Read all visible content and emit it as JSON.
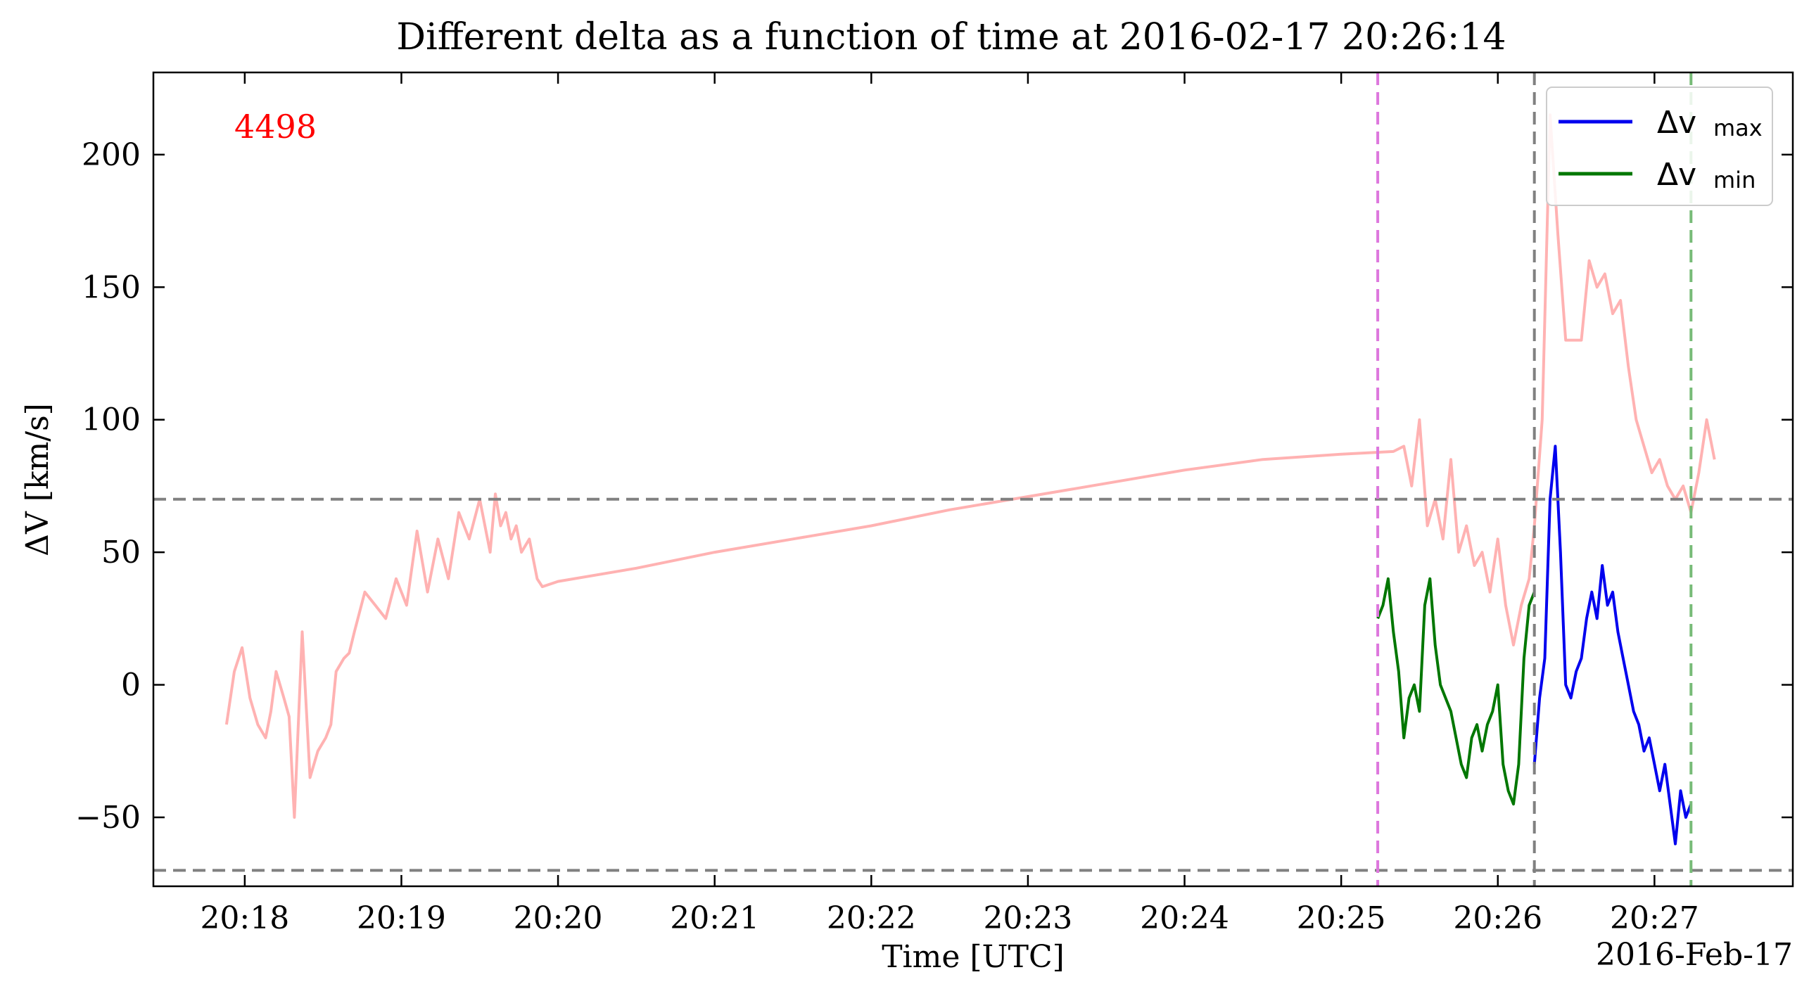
{
  "chart_data": {
    "type": "line",
    "title": "Different delta as a function of time at 2016-02-17 20:26:14",
    "xlabel": "Time [UTC]",
    "ylabel": "ΔV [km/s]",
    "x_offset_label": "2016-Feb-17",
    "annotation": "4498",
    "xlim": [
      "20:17:25",
      "20:27:53"
    ],
    "ylim": [
      -76,
      231
    ],
    "xticks": [
      "20:18",
      "20:19",
      "20:20",
      "20:21",
      "20:22",
      "20:23",
      "20:24",
      "20:25",
      "20:26",
      "20:27"
    ],
    "yticks": [
      -50,
      0,
      50,
      100,
      150,
      200
    ],
    "grid": false,
    "legend_position": "top-right",
    "colors": {
      "background": "#ffffff",
      "delta_v": "#ffb2b2",
      "delta_v_max": "#0000ee",
      "delta_v_min": "#007700",
      "reference_lines": "#808080",
      "magenta_line": "#dd77dd",
      "green_line": "#77bb77",
      "annotation": "#ff0000"
    },
    "horizontal_lines": [
      {
        "y": 70,
        "color": "#808080",
        "style": "dashed"
      },
      {
        "y": -70,
        "color": "#808080",
        "style": "dashed"
      }
    ],
    "vertical_lines": [
      {
        "x": "20:25:14",
        "color": "#dd77dd",
        "style": "dashed"
      },
      {
        "x": "20:26:14",
        "color": "#808080",
        "style": "dashed"
      },
      {
        "x": "20:27:14",
        "color": "#77bb77",
        "style": "dashed"
      }
    ],
    "series": [
      {
        "legend_label": "",
        "color": "#ffb2b2",
        "x": [
          "20:17:53",
          "20:17:56",
          "20:17:59",
          "20:18:02",
          "20:18:05",
          "20:18:08",
          "20:18:10",
          "20:18:12",
          "20:18:15",
          "20:18:17",
          "20:18:19",
          "20:18:22",
          "20:18:25",
          "20:18:28",
          "20:18:31",
          "20:18:33",
          "20:18:35",
          "20:18:38",
          "20:18:40",
          "20:18:42",
          "20:18:46",
          "20:18:50",
          "20:18:54",
          "20:18:58",
          "20:19:02",
          "20:19:06",
          "20:19:10",
          "20:19:14",
          "20:19:18",
          "20:19:22",
          "20:19:26",
          "20:19:30",
          "20:19:34",
          "20:19:36",
          "20:19:38",
          "20:19:40",
          "20:19:42",
          "20:19:44",
          "20:19:46",
          "20:19:49",
          "20:19:52",
          "20:19:54",
          "20:20:00",
          "20:20:30",
          "20:21:00",
          "20:21:30",
          "20:22:00",
          "20:22:30",
          "20:23:00",
          "20:23:30",
          "20:24:00",
          "20:24:30",
          "20:25:00",
          "20:25:20",
          "20:25:24",
          "20:25:27",
          "20:25:30",
          "20:25:33",
          "20:25:36",
          "20:25:39",
          "20:25:42",
          "20:25:45",
          "20:25:48",
          "20:25:51",
          "20:25:54",
          "20:25:57",
          "20:26:00",
          "20:26:03",
          "20:26:06",
          "20:26:09",
          "20:26:12",
          "20:26:14",
          "20:26:17",
          "20:26:20",
          "20:26:23",
          "20:26:26",
          "20:26:29",
          "20:26:32",
          "20:26:35",
          "20:26:38",
          "20:26:41",
          "20:26:44",
          "20:26:47",
          "20:26:50",
          "20:26:53",
          "20:26:56",
          "20:26:59",
          "20:27:02",
          "20:27:05",
          "20:27:08",
          "20:27:11",
          "20:27:14",
          "20:27:17",
          "20:27:20",
          "20:27:23"
        ],
        "y": [
          -15,
          5,
          14,
          -5,
          -15,
          -20,
          -10,
          5,
          -5,
          -12,
          -50,
          20,
          -35,
          -25,
          -20,
          -15,
          5,
          10,
          12,
          20,
          35,
          30,
          25,
          40,
          30,
          58,
          35,
          55,
          40,
          65,
          55,
          70,
          50,
          72,
          60,
          65,
          55,
          60,
          50,
          55,
          40,
          37,
          39,
          44,
          50,
          55,
          60,
          66,
          71,
          76,
          81,
          85,
          87,
          88,
          90,
          75,
          100,
          60,
          70,
          55,
          85,
          50,
          60,
          45,
          50,
          35,
          55,
          30,
          15,
          30,
          40,
          60,
          100,
          215,
          170,
          130,
          130,
          130,
          160,
          150,
          155,
          140,
          145,
          120,
          100,
          90,
          80,
          85,
          75,
          70,
          75,
          65,
          80,
          100,
          85
        ]
      },
      {
        "legend_label": "Δv",
        "legend_sub": "max",
        "color": "#0000ee",
        "x": [
          "20:26:14",
          "20:26:16",
          "20:26:18",
          "20:26:20",
          "20:26:22",
          "20:26:24",
          "20:26:26",
          "20:26:28",
          "20:26:30",
          "20:26:32",
          "20:26:34",
          "20:26:36",
          "20:26:38",
          "20:26:40",
          "20:26:42",
          "20:26:44",
          "20:26:46",
          "20:26:48",
          "20:26:50",
          "20:26:52",
          "20:26:54",
          "20:26:56",
          "20:26:58",
          "20:27:00",
          "20:27:02",
          "20:27:04",
          "20:27:06",
          "20:27:08",
          "20:27:10",
          "20:27:12",
          "20:27:14"
        ],
        "y": [
          -30,
          -5,
          10,
          70,
          90,
          50,
          0,
          -5,
          5,
          10,
          25,
          35,
          25,
          45,
          30,
          35,
          20,
          10,
          0,
          -10,
          -15,
          -25,
          -20,
          -30,
          -40,
          -30,
          -45,
          -60,
          -40,
          -50,
          -45
        ]
      },
      {
        "legend_label": "Δv",
        "legend_sub": "min",
        "color": "#007700",
        "x": [
          "20:25:14",
          "20:25:16",
          "20:25:18",
          "20:25:20",
          "20:25:22",
          "20:25:24",
          "20:25:26",
          "20:25:28",
          "20:25:30",
          "20:25:32",
          "20:25:34",
          "20:25:36",
          "20:25:38",
          "20:25:40",
          "20:25:42",
          "20:25:44",
          "20:25:46",
          "20:25:48",
          "20:25:50",
          "20:25:52",
          "20:25:54",
          "20:25:56",
          "20:25:58",
          "20:26:00",
          "20:26:02",
          "20:26:04",
          "20:26:06",
          "20:26:08",
          "20:26:10",
          "20:26:12",
          "20:26:14"
        ],
        "y": [
          25,
          30,
          40,
          20,
          5,
          -20,
          -5,
          0,
          -10,
          30,
          40,
          15,
          0,
          -5,
          -10,
          -20,
          -30,
          -35,
          -20,
          -15,
          -25,
          -15,
          -10,
          0,
          -30,
          -40,
          -45,
          -30,
          10,
          30,
          35
        ]
      }
    ]
  }
}
